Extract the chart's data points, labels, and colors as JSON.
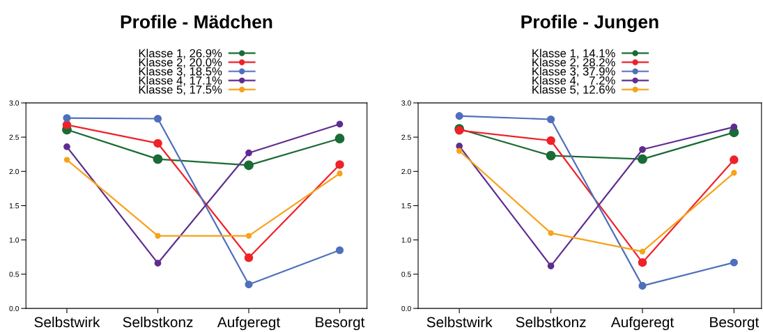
{
  "chart_data": [
    {
      "type": "line",
      "title": "Profile - Mädchen",
      "categories": [
        "Selbstwirk",
        "Selbstkonz",
        "Aufgeregt",
        "Besorgt"
      ],
      "ylim": [
        0,
        3
      ],
      "yticks": [
        {
          "value": 0,
          "label": "0.0"
        },
        {
          "value": 0.5,
          "label": "0.5"
        },
        {
          "value": 1,
          "label": "1.0"
        },
        {
          "value": 1.5,
          "label": "1.5"
        },
        {
          "value": 2,
          "label": "2.0"
        },
        {
          "value": 2.5,
          "label": "2.5"
        },
        {
          "value": 3,
          "label": "3.0"
        }
      ],
      "grid": false,
      "legend": "top",
      "marker": "circle",
      "line_style": "solid",
      "series": [
        {
          "name": "Klasse 1, 26.9%",
          "color": "#1a6b35",
          "values": [
            2.61,
            2.18,
            2.09,
            2.48
          ]
        },
        {
          "name": "Klasse 2, 20.0%",
          "color": "#ee2228",
          "values": [
            2.68,
            2.41,
            0.74,
            2.1
          ]
        },
        {
          "name": "Klasse 3, 18.5%",
          "color": "#4f6fbd",
          "values": [
            2.78,
            2.77,
            0.35,
            0.85
          ]
        },
        {
          "name": "Klasse 4, 17.1%",
          "color": "#5e2d8f",
          "values": [
            2.36,
            0.66,
            2.27,
            2.69
          ]
        },
        {
          "name": "Klasse 5, 17.5%",
          "color": "#f7a21b",
          "values": [
            2.17,
            1.06,
            1.06,
            1.97
          ]
        }
      ]
    },
    {
      "type": "line",
      "title": "Profile - Jungen",
      "categories": [
        "Selbstwirk",
        "Selbstkonz",
        "Aufgeregt",
        "Besorgt"
      ],
      "ylim": [
        0,
        3
      ],
      "yticks": [
        {
          "value": 0,
          "label": "0.0"
        },
        {
          "value": 0.5,
          "label": "0.5"
        },
        {
          "value": 1,
          "label": "1.0"
        },
        {
          "value": 1.5,
          "label": "1.5"
        },
        {
          "value": 2,
          "label": "2.0"
        },
        {
          "value": 2.5,
          "label": "2.5"
        },
        {
          "value": 3,
          "label": "3.0"
        }
      ],
      "grid": false,
      "legend": "top",
      "marker": "circle",
      "line_style": "solid",
      "series": [
        {
          "name": "Klasse 1, 14.1%",
          "color": "#1a6b35",
          "values": [
            2.62,
            2.23,
            2.18,
            2.57
          ]
        },
        {
          "name": "Klasse 2, 28.2%",
          "color": "#ee2228",
          "values": [
            2.6,
            2.45,
            0.67,
            2.17
          ]
        },
        {
          "name": "Klasse 3, 37.9%",
          "color": "#4f6fbd",
          "values": [
            2.81,
            2.76,
            0.33,
            0.67
          ]
        },
        {
          "name": "Klasse 4,   7.2%",
          "color": "#5e2d8f",
          "values": [
            2.37,
            0.62,
            2.32,
            2.65
          ]
        },
        {
          "name": "Klasse 5, 12.6%",
          "color": "#f7a21b",
          "values": [
            2.3,
            1.1,
            0.83,
            1.98
          ]
        }
      ]
    }
  ]
}
